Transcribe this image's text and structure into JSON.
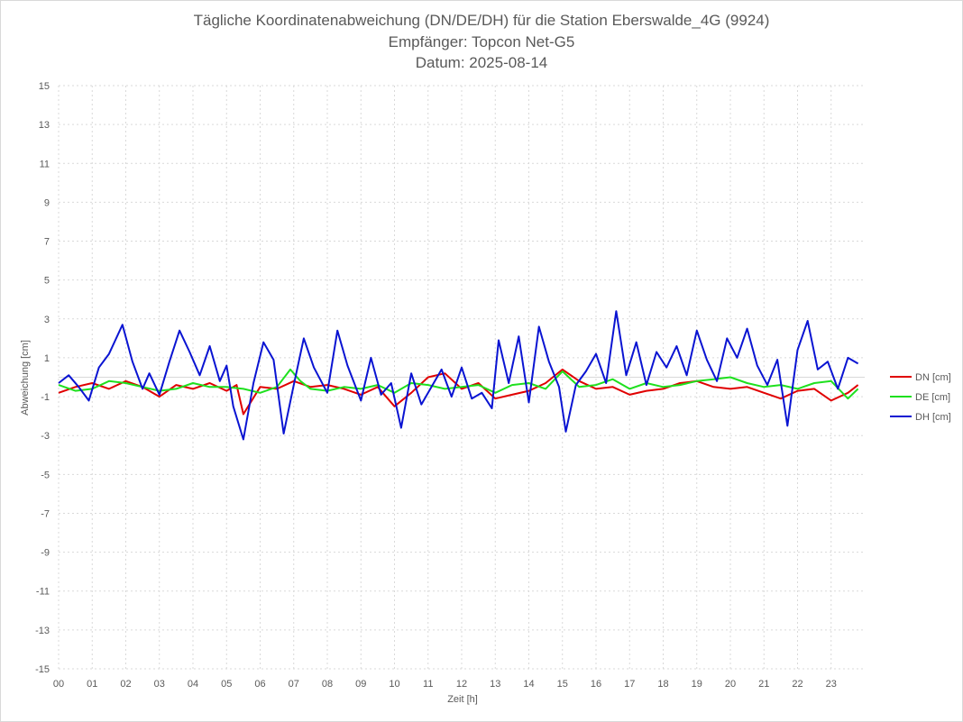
{
  "chart_data": {
    "type": "line",
    "title": "Tägliche Koordinatenabweichung (DN/DE/DH) für die Station Eberswalde_4G (9924)",
    "subtitle": "Empfänger: Topcon Net-G5",
    "date_line": "Datum: 2025-08-14",
    "xlabel": "Zeit [h]",
    "ylabel": "Abweichung [cm]",
    "xlim": [
      0,
      24
    ],
    "ylim": [
      -15,
      15
    ],
    "x_ticks": [
      "00",
      "01",
      "02",
      "03",
      "04",
      "05",
      "06",
      "07",
      "08",
      "09",
      "10",
      "11",
      "12",
      "13",
      "14",
      "15",
      "16",
      "17",
      "18",
      "19",
      "20",
      "21",
      "22",
      "23"
    ],
    "y_ticks": [
      15,
      13,
      11,
      9,
      7,
      5,
      3,
      1,
      -1,
      -3,
      -5,
      -7,
      -9,
      -11,
      -13,
      -15
    ],
    "grid": true,
    "legend_position": "right",
    "series": [
      {
        "name": "DN [cm]",
        "color": "#e00000",
        "x": [
          0,
          0.5,
          1,
          1.5,
          2,
          2.5,
          3,
          3.5,
          4,
          4.5,
          5,
          5.3,
          5.5,
          6,
          6.5,
          7,
          7.5,
          8,
          8.5,
          9,
          9.5,
          10,
          10.5,
          11,
          11.5,
          12,
          12.5,
          13,
          13.5,
          14,
          14.5,
          15,
          15.5,
          16,
          16.5,
          17,
          17.5,
          18,
          18.5,
          19,
          19.5,
          20,
          20.5,
          21,
          21.5,
          22,
          22.5,
          23,
          23.5,
          23.8
        ],
        "values": [
          -0.8,
          -0.5,
          -0.3,
          -0.6,
          -0.2,
          -0.5,
          -1.0,
          -0.4,
          -0.6,
          -0.3,
          -0.7,
          -0.4,
          -1.9,
          -0.5,
          -0.6,
          -0.2,
          -0.5,
          -0.4,
          -0.6,
          -0.9,
          -0.5,
          -1.5,
          -0.8,
          0.0,
          0.2,
          -0.6,
          -0.3,
          -1.1,
          -0.9,
          -0.7,
          -0.3,
          0.4,
          -0.2,
          -0.6,
          -0.5,
          -0.9,
          -0.7,
          -0.6,
          -0.3,
          -0.2,
          -0.5,
          -0.6,
          -0.5,
          -0.8,
          -1.1,
          -0.7,
          -0.6,
          -1.2,
          -0.8,
          -0.4
        ]
      },
      {
        "name": "DE [cm]",
        "color": "#1ee01e",
        "x": [
          0,
          0.5,
          1,
          1.5,
          2,
          2.5,
          3,
          3.5,
          4,
          4.5,
          5,
          5.5,
          6,
          6.5,
          6.9,
          7.2,
          7.5,
          8,
          8.5,
          9,
          9.5,
          10,
          10.5,
          11,
          11.5,
          12,
          12.5,
          13,
          13.5,
          14,
          14.5,
          15,
          15.5,
          16,
          16.5,
          17,
          17.5,
          18,
          18.5,
          19,
          19.5,
          20,
          20.5,
          21,
          21.5,
          22,
          22.5,
          23,
          23.5,
          23.8
        ],
        "values": [
          -0.4,
          -0.7,
          -0.6,
          -0.2,
          -0.3,
          -0.5,
          -0.7,
          -0.6,
          -0.3,
          -0.5,
          -0.5,
          -0.6,
          -0.8,
          -0.5,
          0.4,
          -0.2,
          -0.6,
          -0.7,
          -0.5,
          -0.6,
          -0.4,
          -0.8,
          -0.3,
          -0.4,
          -0.6,
          -0.5,
          -0.4,
          -0.8,
          -0.4,
          -0.3,
          -0.6,
          0.3,
          -0.5,
          -0.4,
          -0.1,
          -0.6,
          -0.3,
          -0.5,
          -0.4,
          -0.2,
          -0.1,
          0.0,
          -0.3,
          -0.5,
          -0.4,
          -0.6,
          -0.3,
          -0.2,
          -1.1,
          -0.6
        ]
      },
      {
        "name": "DH [cm]",
        "color": "#0a14d2",
        "x": [
          0,
          0.3,
          0.6,
          0.9,
          1.2,
          1.5,
          1.9,
          2.2,
          2.5,
          2.7,
          3.0,
          3.3,
          3.6,
          3.9,
          4.2,
          4.5,
          4.8,
          5.0,
          5.2,
          5.5,
          5.8,
          6.1,
          6.4,
          6.7,
          7.0,
          7.3,
          7.6,
          8.0,
          8.3,
          8.6,
          9.0,
          9.3,
          9.6,
          9.9,
          10.2,
          10.5,
          10.8,
          11.1,
          11.4,
          11.7,
          12.0,
          12.3,
          12.6,
          12.9,
          13.1,
          13.4,
          13.7,
          14.0,
          14.3,
          14.6,
          14.9,
          15.1,
          15.4,
          15.7,
          16.0,
          16.3,
          16.6,
          16.9,
          17.2,
          17.5,
          17.8,
          18.1,
          18.4,
          18.7,
          19.0,
          19.3,
          19.6,
          19.9,
          20.2,
          20.5,
          20.8,
          21.1,
          21.4,
          21.7,
          22.0,
          22.3,
          22.6,
          22.9,
          23.2,
          23.5,
          23.8
        ],
        "values": [
          -0.3,
          0.1,
          -0.5,
          -1.2,
          0.5,
          1.2,
          2.7,
          0.8,
          -0.6,
          0.2,
          -0.9,
          0.8,
          2.4,
          1.3,
          0.1,
          1.6,
          -0.2,
          0.6,
          -1.5,
          -3.2,
          -0.3,
          1.8,
          0.9,
          -2.9,
          -0.4,
          2.0,
          0.5,
          -0.8,
          2.4,
          0.6,
          -1.2,
          1.0,
          -0.9,
          -0.3,
          -2.6,
          0.2,
          -1.4,
          -0.5,
          0.4,
          -1.0,
          0.5,
          -1.1,
          -0.8,
          -1.6,
          1.9,
          -0.3,
          2.1,
          -1.3,
          2.6,
          0.8,
          -0.5,
          -2.8,
          -0.4,
          0.3,
          1.2,
          -0.3,
          3.4,
          0.1,
          1.8,
          -0.4,
          1.3,
          0.5,
          1.6,
          0.1,
          2.4,
          0.9,
          -0.2,
          2.0,
          1.0,
          2.5,
          0.6,
          -0.4,
          0.9,
          -2.5,
          1.4,
          2.9,
          0.4,
          0.8,
          -0.6,
          1.0,
          0.7
        ]
      }
    ]
  }
}
